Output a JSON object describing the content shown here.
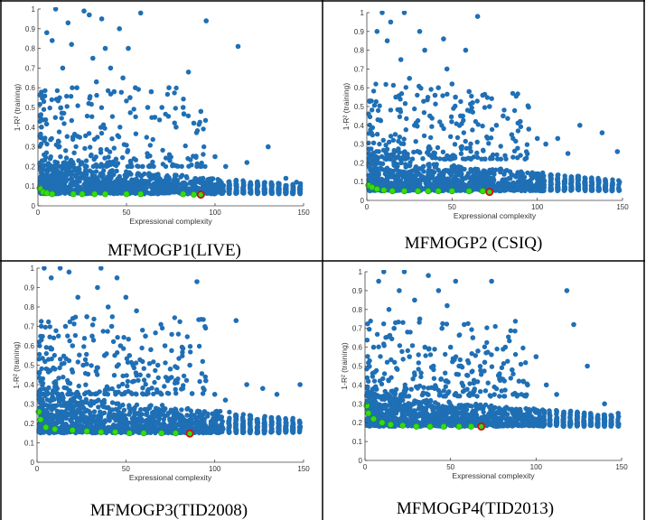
{
  "figure": {
    "panels": [
      {
        "caption": "MFMOGP1(LIVE)",
        "xlabel": "Expressional complexity",
        "ylabel": "1-R² (training)"
      },
      {
        "caption": "MFMOGP2 (CSIQ)",
        "xlabel": "Expressional complexity",
        "ylabel": "1-R² (training)"
      },
      {
        "caption": "MFMOGP3(TID2008)",
        "xlabel": "Expressional complexity",
        "ylabel": "1-R² (training)"
      },
      {
        "caption": "MFMOGP4(TID2013)",
        "xlabel": "Expressional complexity",
        "ylabel": "1-R² (training)"
      }
    ],
    "colors": {
      "points": "#1f6fb5",
      "pareto": "#33dd11",
      "selected": "#cc1111",
      "border": "#000000"
    }
  },
  "chart_data": [
    {
      "type": "scatter",
      "title": "",
      "xlabel": "Expressional complexity",
      "ylabel": "1-R² (training)",
      "xlim": [
        0,
        150
      ],
      "ylim": [
        0,
        1
      ],
      "xticks": [
        0,
        50,
        100,
        150
      ],
      "yticks": [
        0,
        0.1,
        0.2,
        0.3,
        0.4,
        0.5,
        0.6,
        0.7,
        0.8,
        0.9,
        1
      ],
      "cloud": {
        "baseline": 0.06,
        "mass_band": [
          0.06,
          0.2
        ],
        "x_range": [
          1,
          148
        ]
      },
      "outliers": [
        [
          2,
          0.4
        ],
        [
          5,
          0.88
        ],
        [
          8,
          0.84
        ],
        [
          10,
          1.0
        ],
        [
          14,
          0.7
        ],
        [
          17,
          0.93
        ],
        [
          19,
          0.82
        ],
        [
          22,
          0.6
        ],
        [
          26,
          0.99
        ],
        [
          29,
          0.97
        ],
        [
          31,
          0.75
        ],
        [
          33,
          0.63
        ],
        [
          36,
          0.95
        ],
        [
          38,
          0.8
        ],
        [
          41,
          0.7
        ],
        [
          43,
          0.58
        ],
        [
          46,
          0.9
        ],
        [
          48,
          0.65
        ],
        [
          51,
          0.8
        ],
        [
          52,
          0.55
        ],
        [
          55,
          0.6
        ],
        [
          58,
          0.98
        ],
        [
          62,
          0.5
        ],
        [
          64,
          0.58
        ],
        [
          66,
          0.45
        ],
        [
          70,
          0.5
        ],
        [
          74,
          0.6
        ],
        [
          78,
          0.4
        ],
        [
          82,
          0.5
        ],
        [
          85,
          0.68
        ],
        [
          88,
          0.42
        ],
        [
          92,
          0.48
        ],
        [
          95,
          0.94
        ],
        [
          100,
          0.25
        ],
        [
          106,
          0.2
        ],
        [
          113,
          0.81
        ],
        [
          118,
          0.22
        ],
        [
          130,
          0.3
        ],
        [
          140,
          0.14
        ],
        [
          146,
          0.12
        ]
      ],
      "pareto_front": [
        [
          1,
          0.09
        ],
        [
          3,
          0.07
        ],
        [
          5,
          0.065
        ],
        [
          8,
          0.06
        ],
        [
          20,
          0.06
        ],
        [
          25,
          0.06
        ],
        [
          32,
          0.06
        ],
        [
          38,
          0.06
        ],
        [
          50,
          0.06
        ],
        [
          58,
          0.06
        ],
        [
          82,
          0.06
        ],
        [
          88,
          0.058
        ]
      ],
      "selected": [
        [
          92,
          0.057
        ]
      ]
    },
    {
      "type": "scatter",
      "title": "",
      "xlabel": "Expressional complexity",
      "ylabel": "1-R² (training)",
      "xlim": [
        0,
        150
      ],
      "ylim": [
        0,
        1
      ],
      "xticks": [
        0,
        50,
        100,
        150
      ],
      "yticks": [
        0,
        0.1,
        0.2,
        0.3,
        0.4,
        0.5,
        0.6,
        0.7,
        0.8,
        0.9,
        1
      ],
      "cloud": {
        "baseline": 0.05,
        "mass_band": [
          0.05,
          0.22
        ],
        "x_range": [
          1,
          148
        ]
      },
      "outliers": [
        [
          2,
          0.2
        ],
        [
          6,
          0.9
        ],
        [
          9,
          1.0
        ],
        [
          12,
          0.85
        ],
        [
          14,
          0.95
        ],
        [
          17,
          0.55
        ],
        [
          20,
          0.75
        ],
        [
          22,
          1.0
        ],
        [
          25,
          0.65
        ],
        [
          28,
          0.4
        ],
        [
          31,
          0.9
        ],
        [
          34,
          0.8
        ],
        [
          37,
          0.45
        ],
        [
          40,
          0.56
        ],
        [
          42,
          0.6
        ],
        [
          45,
          0.86
        ],
        [
          47,
          0.7
        ],
        [
          50,
          0.62
        ],
        [
          52,
          0.55
        ],
        [
          55,
          0.45
        ],
        [
          58,
          0.8
        ],
        [
          60,
          0.58
        ],
        [
          62,
          0.52
        ],
        [
          65,
          0.98
        ],
        [
          68,
          0.56
        ],
        [
          72,
          0.5
        ],
        [
          76,
          0.4
        ],
        [
          80,
          0.45
        ],
        [
          85,
          0.35
        ],
        [
          90,
          0.42
        ],
        [
          95,
          0.38
        ],
        [
          100,
          0.33
        ],
        [
          105,
          0.3
        ],
        [
          112,
          0.33
        ],
        [
          118,
          0.25
        ],
        [
          125,
          0.4
        ],
        [
          138,
          0.36
        ],
        [
          147,
          0.26
        ]
      ],
      "pareto_front": [
        [
          1,
          0.08
        ],
        [
          3,
          0.07
        ],
        [
          6,
          0.06
        ],
        [
          10,
          0.055
        ],
        [
          15,
          0.05
        ],
        [
          22,
          0.05
        ],
        [
          30,
          0.05
        ],
        [
          36,
          0.05
        ],
        [
          42,
          0.05
        ],
        [
          50,
          0.05
        ],
        [
          60,
          0.05
        ],
        [
          68,
          0.05
        ]
      ],
      "selected": [
        [
          72,
          0.045
        ]
      ]
    },
    {
      "type": "scatter",
      "title": "",
      "xlabel": "Expressional complexity",
      "ylabel": "1-R² (training)",
      "xlim": [
        0,
        150
      ],
      "ylim": [
        0,
        1
      ],
      "xticks": [
        0,
        50,
        100,
        150
      ],
      "yticks": [
        0,
        0.1,
        0.2,
        0.3,
        0.4,
        0.5,
        0.6,
        0.7,
        0.8,
        0.9,
        1
      ],
      "cloud": {
        "baseline": 0.15,
        "mass_band": [
          0.15,
          0.35
        ],
        "x_range": [
          1,
          148
        ]
      },
      "outliers": [
        [
          2,
          0.35
        ],
        [
          4,
          1.0
        ],
        [
          8,
          0.95
        ],
        [
          10,
          0.48
        ],
        [
          13,
          1.0
        ],
        [
          16,
          0.7
        ],
        [
          18,
          0.98
        ],
        [
          20,
          0.6
        ],
        [
          23,
          0.85
        ],
        [
          26,
          0.5
        ],
        [
          28,
          0.75
        ],
        [
          31,
          0.65
        ],
        [
          34,
          0.9
        ],
        [
          36,
          1.0
        ],
        [
          38,
          0.55
        ],
        [
          40,
          0.8
        ],
        [
          42,
          0.7
        ],
        [
          45,
          0.95
        ],
        [
          47,
          0.6
        ],
        [
          50,
          0.85
        ],
        [
          52,
          0.55
        ],
        [
          54,
          0.5
        ],
        [
          56,
          0.78
        ],
        [
          58,
          0.45
        ],
        [
          61,
          0.65
        ],
        [
          64,
          0.58
        ],
        [
          68,
          0.5
        ],
        [
          72,
          0.6
        ],
        [
          75,
          0.48
        ],
        [
          78,
          0.42
        ],
        [
          82,
          0.38
        ],
        [
          86,
          0.5
        ],
        [
          90,
          0.93
        ],
        [
          95,
          0.42
        ],
        [
          100,
          0.35
        ],
        [
          106,
          0.32
        ],
        [
          112,
          0.73
        ],
        [
          118,
          0.4
        ],
        [
          127,
          0.38
        ],
        [
          135,
          0.35
        ],
        [
          148,
          0.4
        ]
      ],
      "pareto_front": [
        [
          1,
          0.26
        ],
        [
          2,
          0.22
        ],
        [
          5,
          0.18
        ],
        [
          10,
          0.17
        ],
        [
          20,
          0.165
        ],
        [
          28,
          0.16
        ],
        [
          36,
          0.155
        ],
        [
          44,
          0.155
        ],
        [
          52,
          0.15
        ],
        [
          60,
          0.15
        ],
        [
          70,
          0.15
        ],
        [
          78,
          0.15
        ]
      ],
      "selected": [
        [
          86,
          0.148
        ]
      ]
    },
    {
      "type": "scatter",
      "title": "",
      "xlabel": "Expressional complexity",
      "ylabel": "1-R² (training)",
      "xlim": [
        0,
        150
      ],
      "ylim": [
        0,
        1
      ],
      "xticks": [
        0,
        50,
        100,
        150
      ],
      "yticks": [
        0,
        0.1,
        0.2,
        0.3,
        0.4,
        0.5,
        0.6,
        0.7,
        0.8,
        0.9,
        1
      ],
      "cloud": {
        "baseline": 0.18,
        "mass_band": [
          0.18,
          0.34
        ],
        "x_range": [
          1,
          148
        ]
      },
      "outliers": [
        [
          2,
          0.3
        ],
        [
          5,
          0.6
        ],
        [
          8,
          0.95
        ],
        [
          11,
          1.0
        ],
        [
          14,
          0.8
        ],
        [
          17,
          0.7
        ],
        [
          20,
          0.9
        ],
        [
          23,
          1.0
        ],
        [
          26,
          0.55
        ],
        [
          29,
          0.85
        ],
        [
          32,
          0.75
        ],
        [
          35,
          0.6
        ],
        [
          37,
          0.98
        ],
        [
          40,
          0.5
        ],
        [
          43,
          0.9
        ],
        [
          45,
          0.7
        ],
        [
          48,
          0.82
        ],
        [
          50,
          0.6
        ],
        [
          53,
          0.95
        ],
        [
          55,
          0.5
        ],
        [
          58,
          0.72
        ],
        [
          60,
          0.45
        ],
        [
          63,
          0.65
        ],
        [
          66,
          0.58
        ],
        [
          70,
          0.52
        ],
        [
          74,
          0.95
        ],
        [
          78,
          0.45
        ],
        [
          82,
          0.6
        ],
        [
          86,
          0.48
        ],
        [
          90,
          0.42
        ],
        [
          95,
          0.4
        ],
        [
          100,
          0.55
        ],
        [
          106,
          0.4
        ],
        [
          112,
          0.35
        ],
        [
          118,
          0.9
        ],
        [
          122,
          0.72
        ],
        [
          130,
          0.5
        ],
        [
          140,
          0.3
        ],
        [
          148,
          0.25
        ]
      ],
      "pareto_front": [
        [
          1,
          0.29
        ],
        [
          2,
          0.25
        ],
        [
          5,
          0.22
        ],
        [
          10,
          0.2
        ],
        [
          15,
          0.19
        ],
        [
          22,
          0.185
        ],
        [
          30,
          0.18
        ],
        [
          38,
          0.18
        ],
        [
          46,
          0.18
        ],
        [
          55,
          0.18
        ],
        [
          62,
          0.18
        ]
      ],
      "selected": [
        [
          68,
          0.18
        ]
      ]
    }
  ]
}
